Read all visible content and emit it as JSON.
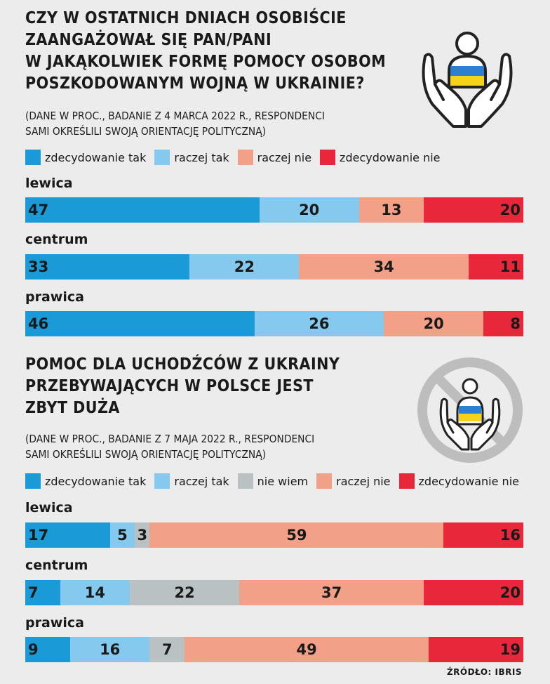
{
  "colors": {
    "zdecydowanie_tak": "#1a9bd8",
    "raczej_tak": "#86c9ee",
    "nie_wiem": "#b9c1c2",
    "raczej_nie": "#f3a089",
    "zdecydowanie_nie": "#e8273a",
    "ukraine_blue": "#2f7fd0",
    "ukraine_yellow": "#f6d21b"
  },
  "chart_data": [
    {
      "type": "bar",
      "stacked": "100%",
      "orientation": "horizontal",
      "title_lines": [
        "CZY W OSTATNICH DNIACH OSOBIŚCIE",
        "ZAANGAŻOWAŁ SIĘ PAN/PANI",
        "W JAKĄKOLWIEK FORMĘ POMOCY OSOBOM",
        "POSZKODOWANYM WOJNĄ W UKRAINIE?"
      ],
      "subtitle_lines": [
        "(DANE W PROC., BADANIE Z 4 MARCA 2022 R., RESPONDENCI",
        "SAMI OKREŚLILI SWOJĄ ORIENTACJĘ POLITYCZNĄ)"
      ],
      "legend": [
        {
          "label": "zdecydowanie tak",
          "color_key": "zdecydowanie_tak"
        },
        {
          "label": "raczej tak",
          "color_key": "raczej_tak"
        },
        {
          "label": "raczej nie",
          "color_key": "raczej_nie"
        },
        {
          "label": "zdecydowanie nie",
          "color_key": "zdecydowanie_nie"
        }
      ],
      "categories": [
        "lewica",
        "centrum",
        "prawica"
      ],
      "series": [
        {
          "name": "zdecydowanie tak",
          "values": [
            47,
            33,
            46
          ]
        },
        {
          "name": "raczej tak",
          "values": [
            20,
            22,
            26
          ]
        },
        {
          "name": "raczej nie",
          "values": [
            13,
            34,
            20
          ]
        },
        {
          "name": "zdecydowanie nie",
          "values": [
            20,
            11,
            8
          ]
        }
      ]
    },
    {
      "type": "bar",
      "stacked": "100%",
      "orientation": "horizontal",
      "title_lines": [
        "POMOC DLA UCHODŹCÓW Z UKRAINY",
        "PRZEBYWAJĄCYCH W POLSCE JEST",
        "ZBYT DUŻA"
      ],
      "subtitle_lines": [
        "(DANE W PROC., BADANIE Z 7 MAJA 2022 R., RESPONDENCI",
        "SAMI OKREŚLILI SWOJĄ ORIENTACJĘ POLITYCZNĄ)"
      ],
      "legend": [
        {
          "label": "zdecydowanie tak",
          "color_key": "zdecydowanie_tak"
        },
        {
          "label": "raczej tak",
          "color_key": "raczej_tak"
        },
        {
          "label": "nie wiem",
          "color_key": "nie_wiem"
        },
        {
          "label": "raczej nie",
          "color_key": "raczej_nie"
        },
        {
          "label": "zdecydowanie nie",
          "color_key": "zdecydowanie_nie"
        }
      ],
      "categories": [
        "lewica",
        "centrum",
        "prawica"
      ],
      "series": [
        {
          "name": "zdecydowanie tak",
          "values": [
            17,
            7,
            9
          ]
        },
        {
          "name": "raczej tak",
          "values": [
            5,
            14,
            16
          ]
        },
        {
          "name": "nie wiem",
          "values": [
            3,
            22,
            7
          ]
        },
        {
          "name": "raczej nie",
          "values": [
            59,
            37,
            49
          ]
        },
        {
          "name": "zdecydowanie nie",
          "values": [
            16,
            20,
            19
          ]
        }
      ]
    }
  ],
  "icons": {
    "chart1": "hands-helping-person-icon",
    "chart2": "prohibited-help-icon"
  },
  "source": "ŹRÓDŁO: IBRIS"
}
